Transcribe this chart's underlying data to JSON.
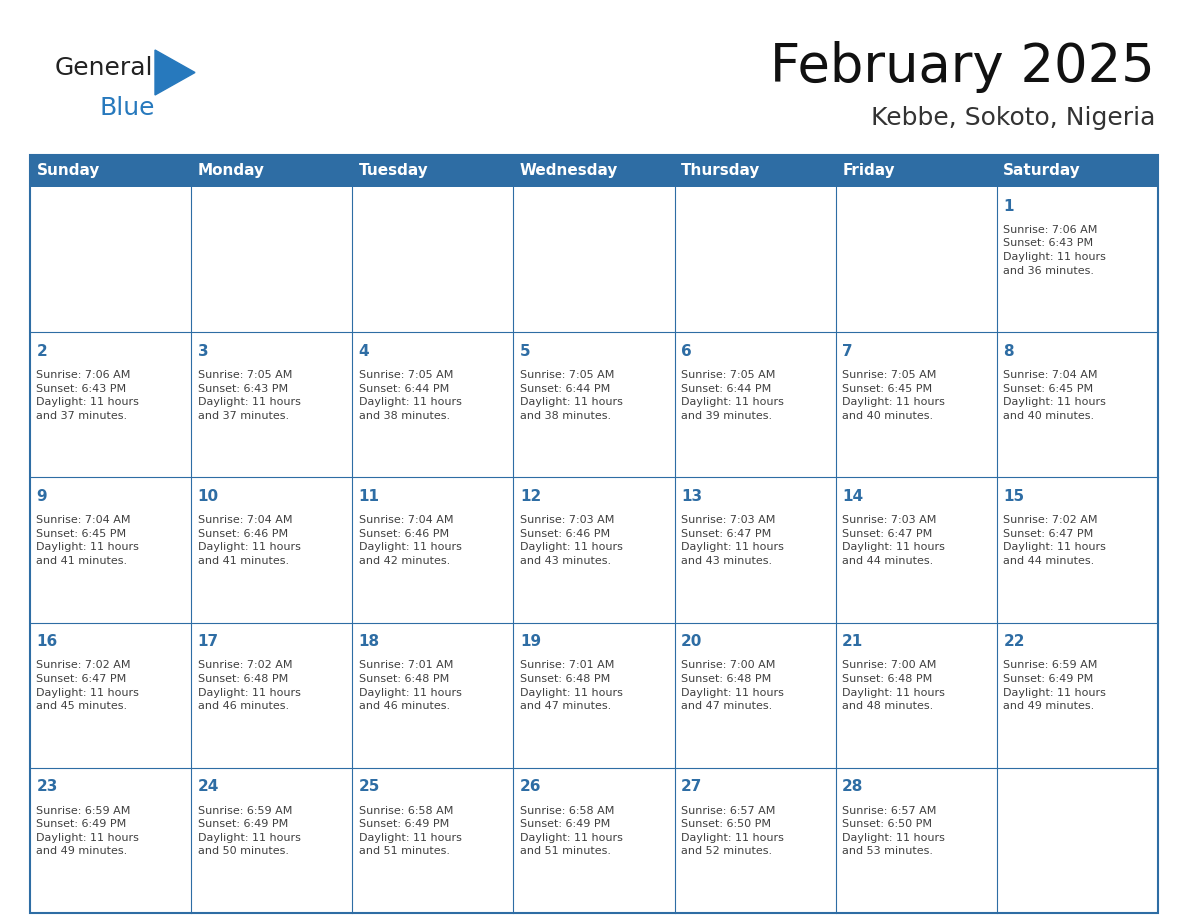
{
  "title": "February 2025",
  "subtitle": "Kebbe, Sokoto, Nigeria",
  "header_color": "#2E6DA4",
  "header_text_color": "#FFFFFF",
  "days_of_week": [
    "Sunday",
    "Monday",
    "Tuesday",
    "Wednesday",
    "Thursday",
    "Friday",
    "Saturday"
  ],
  "cell_bg_color": "#FFFFFF",
  "cell_border_color": "#2E6DA4",
  "day_number_color": "#2E6DA4",
  "info_text_color": "#404040",
  "background_color": "#FFFFFF",
  "logo_general_color": "#222222",
  "logo_blue_color": "#2779BD",
  "weeks": [
    [
      {
        "day": null,
        "info": null
      },
      {
        "day": null,
        "info": null
      },
      {
        "day": null,
        "info": null
      },
      {
        "day": null,
        "info": null
      },
      {
        "day": null,
        "info": null
      },
      {
        "day": null,
        "info": null
      },
      {
        "day": 1,
        "info": "Sunrise: 7:06 AM\nSunset: 6:43 PM\nDaylight: 11 hours\nand 36 minutes."
      }
    ],
    [
      {
        "day": 2,
        "info": "Sunrise: 7:06 AM\nSunset: 6:43 PM\nDaylight: 11 hours\nand 37 minutes."
      },
      {
        "day": 3,
        "info": "Sunrise: 7:05 AM\nSunset: 6:43 PM\nDaylight: 11 hours\nand 37 minutes."
      },
      {
        "day": 4,
        "info": "Sunrise: 7:05 AM\nSunset: 6:44 PM\nDaylight: 11 hours\nand 38 minutes."
      },
      {
        "day": 5,
        "info": "Sunrise: 7:05 AM\nSunset: 6:44 PM\nDaylight: 11 hours\nand 38 minutes."
      },
      {
        "day": 6,
        "info": "Sunrise: 7:05 AM\nSunset: 6:44 PM\nDaylight: 11 hours\nand 39 minutes."
      },
      {
        "day": 7,
        "info": "Sunrise: 7:05 AM\nSunset: 6:45 PM\nDaylight: 11 hours\nand 40 minutes."
      },
      {
        "day": 8,
        "info": "Sunrise: 7:04 AM\nSunset: 6:45 PM\nDaylight: 11 hours\nand 40 minutes."
      }
    ],
    [
      {
        "day": 9,
        "info": "Sunrise: 7:04 AM\nSunset: 6:45 PM\nDaylight: 11 hours\nand 41 minutes."
      },
      {
        "day": 10,
        "info": "Sunrise: 7:04 AM\nSunset: 6:46 PM\nDaylight: 11 hours\nand 41 minutes."
      },
      {
        "day": 11,
        "info": "Sunrise: 7:04 AM\nSunset: 6:46 PM\nDaylight: 11 hours\nand 42 minutes."
      },
      {
        "day": 12,
        "info": "Sunrise: 7:03 AM\nSunset: 6:46 PM\nDaylight: 11 hours\nand 43 minutes."
      },
      {
        "day": 13,
        "info": "Sunrise: 7:03 AM\nSunset: 6:47 PM\nDaylight: 11 hours\nand 43 minutes."
      },
      {
        "day": 14,
        "info": "Sunrise: 7:03 AM\nSunset: 6:47 PM\nDaylight: 11 hours\nand 44 minutes."
      },
      {
        "day": 15,
        "info": "Sunrise: 7:02 AM\nSunset: 6:47 PM\nDaylight: 11 hours\nand 44 minutes."
      }
    ],
    [
      {
        "day": 16,
        "info": "Sunrise: 7:02 AM\nSunset: 6:47 PM\nDaylight: 11 hours\nand 45 minutes."
      },
      {
        "day": 17,
        "info": "Sunrise: 7:02 AM\nSunset: 6:48 PM\nDaylight: 11 hours\nand 46 minutes."
      },
      {
        "day": 18,
        "info": "Sunrise: 7:01 AM\nSunset: 6:48 PM\nDaylight: 11 hours\nand 46 minutes."
      },
      {
        "day": 19,
        "info": "Sunrise: 7:01 AM\nSunset: 6:48 PM\nDaylight: 11 hours\nand 47 minutes."
      },
      {
        "day": 20,
        "info": "Sunrise: 7:00 AM\nSunset: 6:48 PM\nDaylight: 11 hours\nand 47 minutes."
      },
      {
        "day": 21,
        "info": "Sunrise: 7:00 AM\nSunset: 6:48 PM\nDaylight: 11 hours\nand 48 minutes."
      },
      {
        "day": 22,
        "info": "Sunrise: 6:59 AM\nSunset: 6:49 PM\nDaylight: 11 hours\nand 49 minutes."
      }
    ],
    [
      {
        "day": 23,
        "info": "Sunrise: 6:59 AM\nSunset: 6:49 PM\nDaylight: 11 hours\nand 49 minutes."
      },
      {
        "day": 24,
        "info": "Sunrise: 6:59 AM\nSunset: 6:49 PM\nDaylight: 11 hours\nand 50 minutes."
      },
      {
        "day": 25,
        "info": "Sunrise: 6:58 AM\nSunset: 6:49 PM\nDaylight: 11 hours\nand 51 minutes."
      },
      {
        "day": 26,
        "info": "Sunrise: 6:58 AM\nSunset: 6:49 PM\nDaylight: 11 hours\nand 51 minutes."
      },
      {
        "day": 27,
        "info": "Sunrise: 6:57 AM\nSunset: 6:50 PM\nDaylight: 11 hours\nand 52 minutes."
      },
      {
        "day": 28,
        "info": "Sunrise: 6:57 AM\nSunset: 6:50 PM\nDaylight: 11 hours\nand 53 minutes."
      },
      {
        "day": null,
        "info": null
      }
    ]
  ]
}
